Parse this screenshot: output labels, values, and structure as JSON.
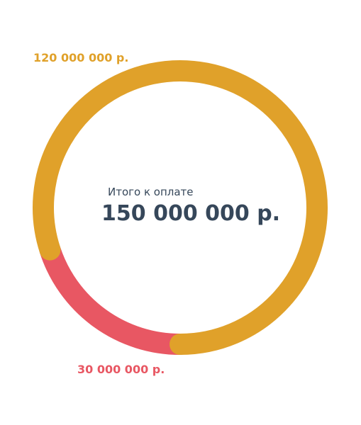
{
  "chart_data": {
    "type": "pie",
    "style": "donut",
    "categories": [
      "120 000 000 р.",
      "30 000 000 р."
    ],
    "values": [
      120000000,
      30000000
    ],
    "colors": [
      "#e0a12a",
      "#e85763"
    ],
    "center": {
      "caption": "Итого к оплате",
      "total": "150 000 000 р."
    },
    "legend": "none",
    "grid": false
  }
}
